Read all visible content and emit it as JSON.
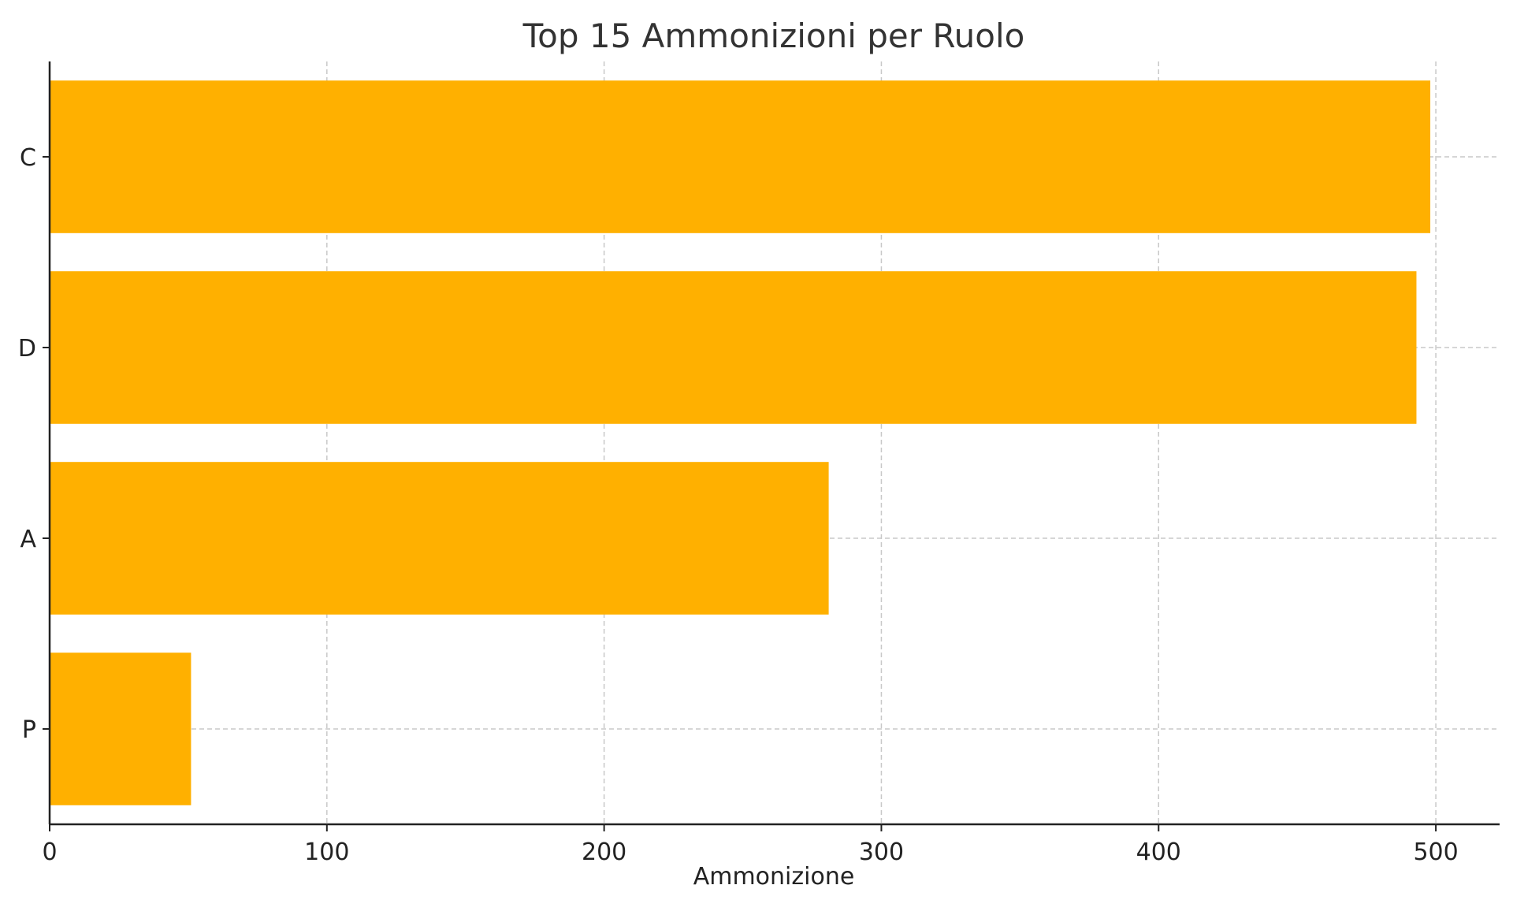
{
  "chart_data": {
    "type": "bar",
    "orientation": "horizontal",
    "title": "Top 15 Ammonizioni per Ruolo",
    "xlabel": "Ammonizione",
    "ylabel": "",
    "categories": [
      "C",
      "D",
      "A",
      "P"
    ],
    "values": [
      498,
      493,
      281,
      51
    ],
    "xlim": [
      0,
      523
    ],
    "xticks": [
      0,
      100,
      200,
      300,
      400,
      500
    ],
    "grid": true,
    "legend": "none",
    "bar_color": "#FFB000",
    "axis_color": "#222222",
    "grid_color": "#c8c8c8",
    "text_color": "#333333"
  }
}
